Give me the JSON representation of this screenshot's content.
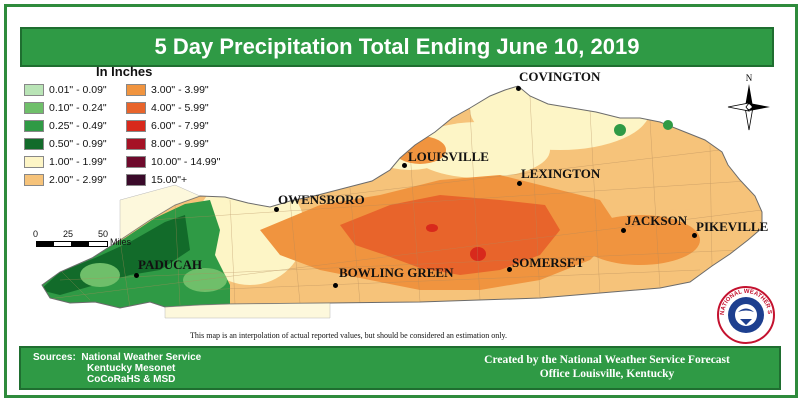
{
  "title": "5 Day Precipitation Total Ending June 10, 2019",
  "legend": {
    "title": "In Inches",
    "items": [
      {
        "label": "0.01\" - 0.09\"",
        "color": "#b9e4b6"
      },
      {
        "label": "0.10\" - 0.24\"",
        "color": "#6fbf6a"
      },
      {
        "label": "0.25\" - 0.49\"",
        "color": "#2f9a45"
      },
      {
        "label": "0.50\" - 0.99\"",
        "color": "#126b2a"
      },
      {
        "label": "1.00\" - 1.99\"",
        "color": "#fdf5c6"
      },
      {
        "label": "2.00\" - 2.99\"",
        "color": "#f6c37a"
      },
      {
        "label": "3.00\" - 3.99\"",
        "color": "#f0943f"
      },
      {
        "label": "4.00\" - 5.99\"",
        "color": "#e8642b"
      },
      {
        "label": "6.00\" - 7.99\"",
        "color": "#d8291c"
      },
      {
        "label": "8.00\" - 9.99\"",
        "color": "#a51225"
      },
      {
        "label": "10.00\" - 14.99\"",
        "color": "#6e0a2c"
      },
      {
        "label": "15.00\"+",
        "color": "#3a0a2a"
      }
    ]
  },
  "scale": {
    "ticks": [
      "0",
      "25",
      "50"
    ],
    "unit": "Miles"
  },
  "cities": [
    {
      "name": "COVINGTON"
    },
    {
      "name": "LOUISVILLE"
    },
    {
      "name": "LEXINGTON"
    },
    {
      "name": "OWENSBORO"
    },
    {
      "name": "JACKSON"
    },
    {
      "name": "PIKEVILLE"
    },
    {
      "name": "PADUCAH"
    },
    {
      "name": "BOWLING GREEN"
    },
    {
      "name": "SOMERSET"
    }
  ],
  "compass_label": "N",
  "note": "This map is an interpolation of actual reported values, but should be considered an estimation only.",
  "sources": {
    "label": "Sources:",
    "lines": [
      "National Weather Service",
      "Kentucky Mesonet",
      "CoCoRaHS & MSD"
    ]
  },
  "credit": {
    "line1": "Created by the National Weather Service Forecast",
    "line2": "Office Louisville, Kentucky"
  },
  "logo_text": "NATIONAL WEATHER SERVICE"
}
